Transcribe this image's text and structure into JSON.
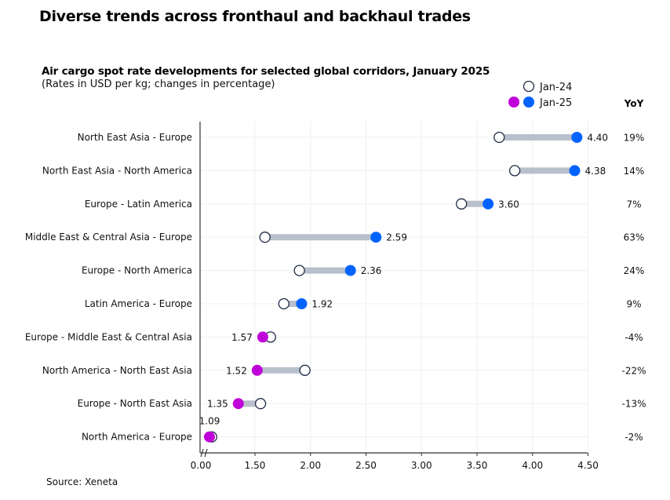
{
  "headline": "Diverse trends across fronthaul and backhaul trades",
  "source": "Source: Xeneta",
  "chart_data": {
    "type": "dumbbell",
    "title": "Air cargo spot rate developments for selected global corridors, January 2025",
    "subtitle": "(Rates in USD per kg; changes in percentage)",
    "xlabel": "",
    "ylabel": "",
    "xlim": [
      0,
      4.5
    ],
    "axis_break": true,
    "grid": true,
    "x_ticks": [
      "0.00",
      "1.50",
      "2.00",
      "2.50",
      "3.00",
      "3.50",
      "4.00",
      "4.50"
    ],
    "x_tick_values": [
      0,
      1.5,
      2.0,
      2.5,
      3.0,
      3.5,
      4.0,
      4.5
    ],
    "legend": {
      "placement": "top-right",
      "entries": [
        {
          "name": "Jan-24",
          "style": "hollow-circle"
        },
        {
          "name": "Jan-25",
          "style": "filled-circle",
          "colors": [
            "#C000D8",
            "#0062FF"
          ]
        }
      ]
    },
    "yoy_header": "YoY",
    "colors": {
      "increase": "#0062FF",
      "decrease": "#C000D8",
      "connector": "#B8C0CC",
      "hollow_stroke": "#1F2A44"
    },
    "categories": [
      "North East Asia - Europe",
      "North East Asia - North America",
      "Europe - Latin America",
      "Middle East & Central Asia - Europe",
      "Europe - North America",
      "Latin America - Europe",
      "Europe - Middle East & Central Asia",
      "North America - North East Asia",
      "Europe - North East Asia",
      "North America - Europe"
    ],
    "series": [
      {
        "name": "Jan-24",
        "values": [
          3.7,
          3.84,
          3.36,
          1.59,
          1.9,
          1.76,
          1.64,
          1.95,
          1.55,
          1.11
        ]
      },
      {
        "name": "Jan-25",
        "values": [
          4.4,
          4.38,
          3.6,
          2.59,
          2.36,
          1.92,
          1.57,
          1.52,
          1.35,
          1.09
        ]
      }
    ],
    "value_labels": [
      "4.40",
      "4.38",
      "3.60",
      "2.59",
      "2.36",
      "1.92",
      "1.57",
      "1.52",
      "1.35",
      "1.09"
    ],
    "yoy": [
      "19%",
      "14%",
      "7%",
      "63%",
      "24%",
      "9%",
      "-4%",
      "-22%",
      "-13%",
      "-2%"
    ]
  }
}
